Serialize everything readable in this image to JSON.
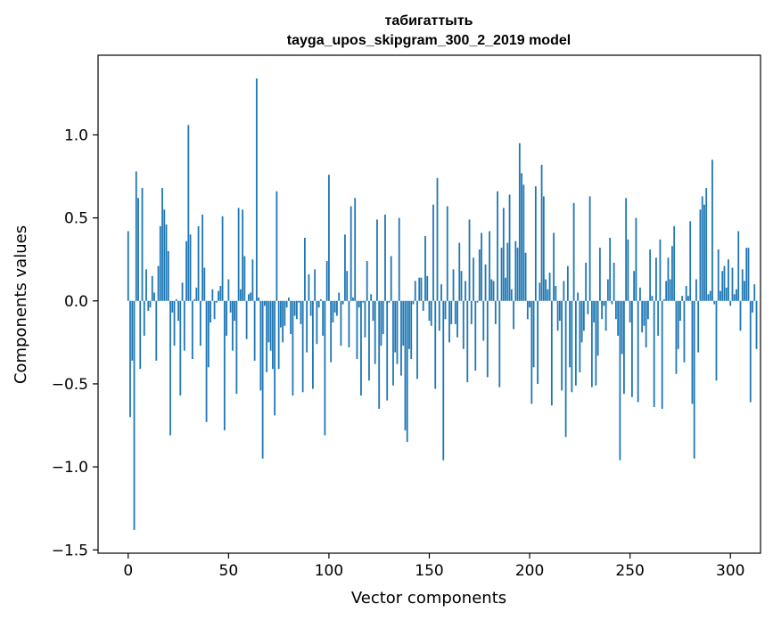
{
  "chart_data": {
    "type": "bar",
    "title": "табигаттыть",
    "subtitle": "tayga_upos_skipgram_300_2_2019 model",
    "xlabel": "Vector components",
    "ylabel": "Components values",
    "xlim": [
      -15,
      315
    ],
    "ylim": [
      -1.52,
      1.48
    ],
    "xticks": [
      0,
      50,
      100,
      150,
      200,
      250,
      300
    ],
    "yticks": [
      -1.5,
      -1.0,
      -0.5,
      0.0,
      0.5,
      1.0
    ],
    "ytick_labels": [
      "−1.5",
      "−1.0",
      "−0.5",
      "0.0",
      "0.5",
      "1.0"
    ],
    "bar_color": "#1f77b4",
    "grid": false,
    "legend": "none",
    "values": [
      0.42,
      -0.7,
      -0.36,
      -1.38,
      0.78,
      0.62,
      -0.41,
      0.68,
      -0.21,
      0.19,
      -0.06,
      -0.04,
      0.15,
      0.05,
      -0.36,
      0.21,
      0.45,
      0.68,
      0.55,
      0.46,
      0.3,
      -0.81,
      -0.07,
      -0.27,
      0.01,
      -0.12,
      -0.57,
      0.11,
      -0.3,
      0.36,
      1.06,
      0.4,
      -0.35,
      0.01,
      0.08,
      0.45,
      -0.27,
      0.52,
      0.2,
      -0.73,
      -0.4,
      -0.13,
      0.07,
      -0.11,
      -0.01,
      0.06,
      0.09,
      0.51,
      -0.78,
      -0.21,
      0.13,
      -0.07,
      -0.3,
      -0.12,
      -0.56,
      0.56,
      0.07,
      0.55,
      0.27,
      -0.23,
      0.04,
      0.05,
      0.25,
      -0.36,
      1.34,
      0.02,
      -0.54,
      -0.95,
      -0.03,
      -0.43,
      -0.25,
      -0.3,
      -0.41,
      -0.69,
      0.66,
      -0.41,
      -0.16,
      -0.25,
      -0.15,
      -0.04,
      0.02,
      -0.2,
      -0.57,
      -0.09,
      -0.11,
      -0.01,
      -0.14,
      -0.55,
      0.38,
      -0.31,
      0.16,
      -0.09,
      -0.53,
      0.19,
      -0.26,
      -0.04,
      0.01,
      -0.21,
      -0.81,
      0.24,
      0.76,
      -0.37,
      -0.13,
      -0.07,
      -0.09,
      0.05,
      -0.27,
      -0.02,
      0.4,
      0.18,
      -0.28,
      0.57,
      0.02,
      0.62,
      -0.35,
      -0.04,
      -0.57,
      -0.01,
      -0.22,
      0.24,
      -0.48,
      0.04,
      -0.12,
      -0.38,
      0.49,
      -0.65,
      -0.27,
      -0.2,
      0.52,
      -0.6,
      -0.01,
      0.27,
      -0.51,
      -0.31,
      -0.38,
      0.5,
      -0.45,
      -0.27,
      -0.78,
      -0.85,
      -0.29,
      -0.35,
      -0.02,
      0.12,
      -0.47,
      0.14,
      0.14,
      -0.06,
      0.39,
      0.15,
      -0.12,
      -0.15,
      0.58,
      -0.53,
      0.74,
      -0.18,
      0.1,
      -0.96,
      -0.11,
      0.57,
      -0.25,
      -0.14,
      0.19,
      -0.14,
      -0.22,
      0.35,
      0.18,
      -0.29,
      0.12,
      -0.49,
      0.49,
      -0.14,
      0.26,
      -0.42,
      -0.01,
      0.31,
      0.41,
      -0.24,
      0.22,
      -0.46,
      0.42,
      0.13,
      0.12,
      -0.14,
      0.66,
      -0.52,
      0.32,
      0.56,
      0.14,
      0.35,
      0.64,
      0.07,
      -0.17,
      0.36,
      0.32,
      0.95,
      0.77,
      0.7,
      0.29,
      -0.11,
      -0.04,
      -0.62,
      -0.4,
      0.69,
      -0.5,
      0.11,
      0.82,
      0.63,
      0.13,
      0.07,
      0.17,
      -0.63,
      0.41,
      0.09,
      -0.18,
      -0.12,
      -0.54,
      0.12,
      -0.82,
      0.21,
      -0.4,
      -0.55,
      0.59,
      -0.51,
      0.05,
      -0.43,
      -0.25,
      -0.18,
      0.23,
      -0.08,
      0.63,
      -0.52,
      -0.13,
      -0.51,
      -0.33,
      0.32,
      -0.11,
      -0.03,
      -0.18,
      0.13,
      0.38,
      -0.02,
      0.23,
      -0.11,
      -0.21,
      -0.96,
      -0.32,
      -0.56,
      0.62,
      0.37,
      -0.13,
      -0.58,
      0.18,
      0.5,
      -0.61,
      0.08,
      -0.19,
      -0.15,
      -0.28,
      -0.11,
      0.31,
      0.03,
      -0.64,
      0.26,
      -0.21,
      0.37,
      -0.65,
      0.01,
      0.12,
      0.26,
      0.13,
      0.33,
      0.45,
      -0.44,
      -0.29,
      -0.12,
      0.03,
      -0.37,
      0.09,
      0.03,
      0.48,
      -0.62,
      -0.95,
      0.13,
      -0.31,
      0.55,
      0.63,
      0.58,
      0.68,
      0.04,
      0.06,
      0.85,
      -0.02,
      -0.48,
      0.31,
      0.06,
      0.18,
      0.21,
      0.08,
      0.25,
      -0.03,
      0.2,
      0.04,
      0.07,
      0.42,
      -0.18,
      0.19,
      0.12,
      0.32,
      0.32,
      -0.61,
      -0.07,
      0.1,
      -0.29
    ]
  }
}
